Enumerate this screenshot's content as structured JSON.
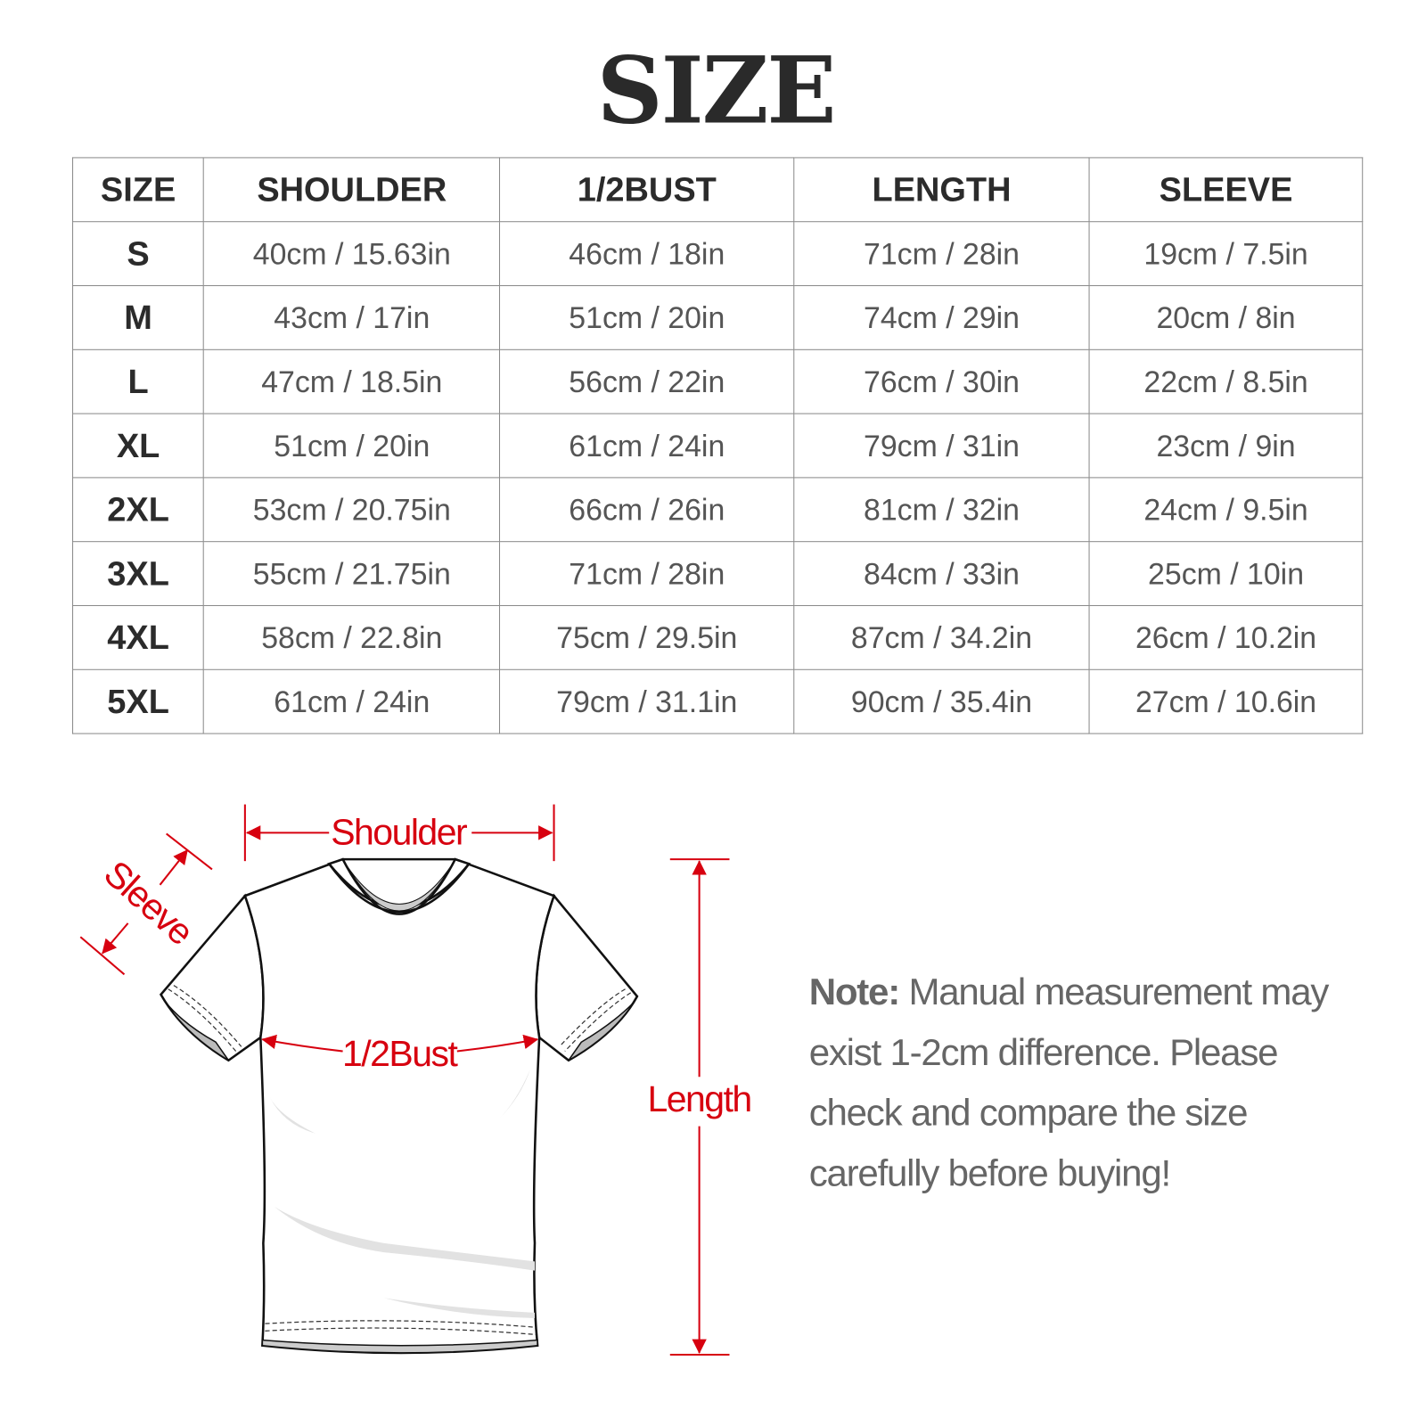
{
  "title": "SIZE",
  "table": {
    "headers": [
      "SIZE",
      "SHOULDER",
      "1/2BUST",
      "LENGTH",
      "SLEEVE"
    ],
    "rows": [
      [
        "S",
        "40cm / 15.63in",
        "46cm / 18in",
        "71cm / 28in",
        "19cm / 7.5in"
      ],
      [
        "M",
        "43cm / 17in",
        "51cm / 20in",
        "74cm / 29in",
        "20cm / 8in"
      ],
      [
        "L",
        "47cm / 18.5in",
        "56cm / 22in",
        "76cm / 30in",
        "22cm / 8.5in"
      ],
      [
        "XL",
        "51cm / 20in",
        "61cm / 24in",
        "79cm / 31in",
        "23cm / 9in"
      ],
      [
        "2XL",
        "53cm / 20.75in",
        "66cm / 26in",
        "81cm / 32in",
        "24cm / 9.5in"
      ],
      [
        "3XL",
        "55cm / 21.75in",
        "71cm / 28in",
        "84cm / 33in",
        "25cm / 10in"
      ],
      [
        "4XL",
        "58cm / 22.8in",
        "75cm / 29.5in",
        "87cm / 34.2in",
        "26cm / 10.2in"
      ],
      [
        "5XL",
        "61cm / 24in",
        "79cm / 31.1in",
        "90cm / 35.4in",
        "27cm / 10.6in"
      ]
    ]
  },
  "diagram": {
    "shoulder": "Shoulder",
    "sleeve": "Sleeve",
    "bust": "1/2Bust",
    "length": "Length",
    "accent_color": "#d7000f"
  },
  "note": {
    "label": "Note:",
    "text": " Manual measurement may exist 1-2cm difference. Please check and compare the size carefully before buying!"
  }
}
